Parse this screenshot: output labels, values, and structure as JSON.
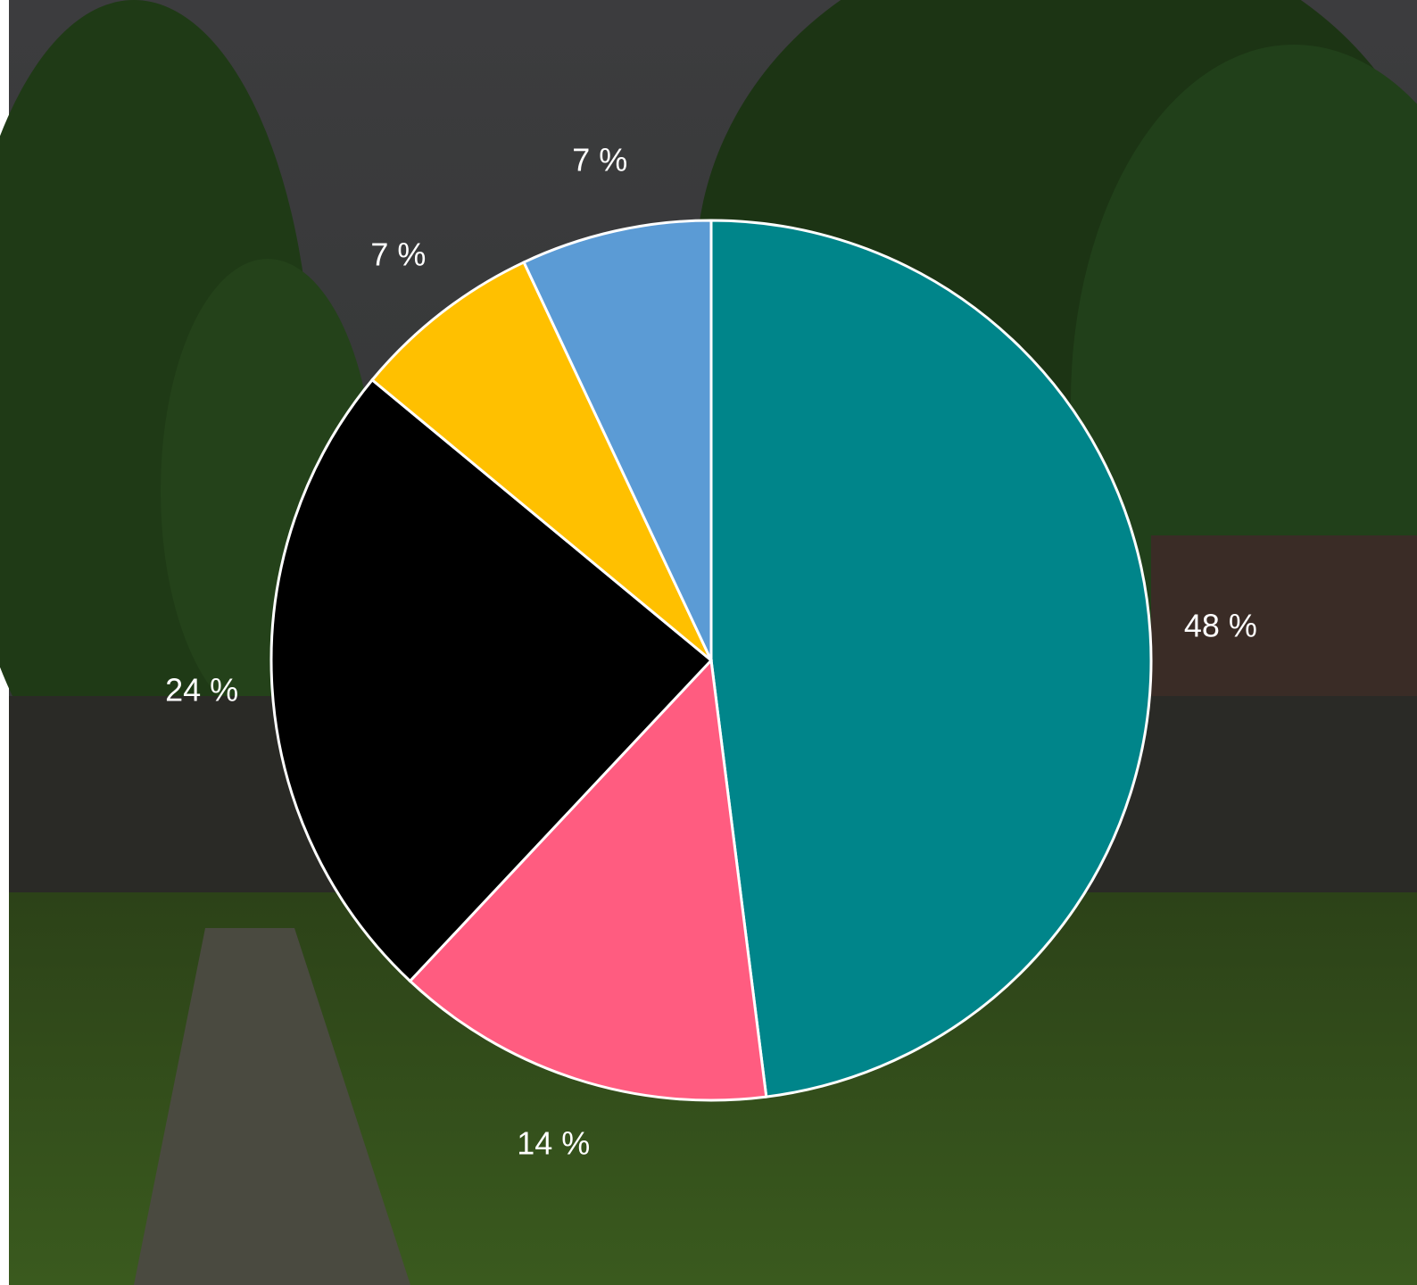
{
  "chart_data": {
    "type": "pie",
    "values": [
      48,
      14,
      24,
      7,
      7
    ],
    "value_labels": [
      "48 %",
      "14 %",
      "24 %",
      "7 %",
      "7 %"
    ],
    "colors": [
      "#00858a",
      "#ff5c80",
      "#000000",
      "#ffc000",
      "#5b9bd5"
    ]
  }
}
